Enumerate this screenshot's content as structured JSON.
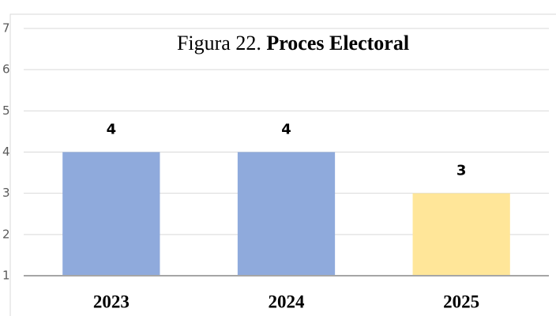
{
  "chart_data": {
    "type": "bar",
    "title": {
      "label": "Figura 22.",
      "name": "Proces Electoral"
    },
    "categories": [
      "2023",
      "2024",
      "2025"
    ],
    "values": [
      4,
      4,
      3
    ],
    "colors": [
      "#8faadc",
      "#8faadc",
      "#ffe699"
    ],
    "ylim": [
      1,
      7
    ],
    "yticks": [
      1,
      2,
      3,
      4,
      5,
      6,
      7
    ],
    "grid": true
  }
}
